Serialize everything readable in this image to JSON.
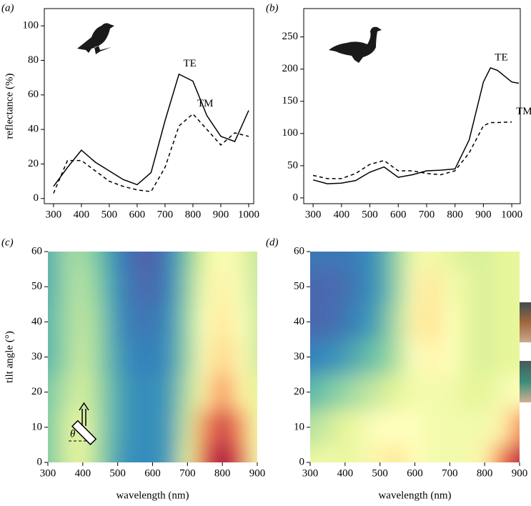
{
  "chart_data": [
    {
      "type": "line",
      "panel_label": "(a)",
      "ylabel": "reflectance (%)",
      "x": [
        300,
        350,
        400,
        450,
        500,
        550,
        600,
        650,
        700,
        750,
        800,
        850,
        900,
        950,
        1000
      ],
      "series": [
        {
          "name": "TE",
          "color": "#000000",
          "line_style": "solid",
          "values": [
            7,
            18,
            28,
            21,
            16,
            11,
            8,
            15,
            45,
            72,
            68,
            48,
            36,
            33,
            51
          ]
        },
        {
          "name": "TM",
          "color": "#000000",
          "line_style": "dashed",
          "values": [
            3,
            22,
            22,
            16,
            10,
            7,
            5,
            4,
            18,
            42,
            49,
            40,
            31,
            38,
            36
          ]
        }
      ],
      "xlim": [
        267,
        1018
      ],
      "ylim": [
        -3,
        110
      ],
      "xticks": [
        300,
        400,
        500,
        600,
        700,
        800,
        900,
        1000
      ],
      "yticks": [
        0,
        20,
        40,
        60,
        80,
        100
      ]
    },
    {
      "type": "line",
      "panel_label": "(b)",
      "x": [
        300,
        350,
        400,
        450,
        500,
        550,
        600,
        650,
        700,
        750,
        800,
        850,
        900,
        925,
        950,
        1000,
        1025
      ],
      "series": [
        {
          "name": "TE",
          "color": "#000000",
          "line_style": "solid",
          "values": [
            28,
            22,
            23,
            27,
            40,
            48,
            32,
            36,
            42,
            43,
            45,
            90,
            180,
            202,
            198,
            180,
            178
          ]
        },
        {
          "name": "TM",
          "color": "#000000",
          "line_style": "dashed",
          "values": [
            35,
            30,
            30,
            38,
            52,
            58,
            42,
            42,
            38,
            36,
            42,
            70,
            112,
            117,
            117,
            118,
            null
          ]
        }
      ],
      "xlim": [
        267,
        1030
      ],
      "ylim": [
        -9,
        294
      ],
      "xticks": [
        300,
        400,
        500,
        600,
        700,
        800,
        900,
        1000
      ],
      "yticks": [
        0,
        50,
        100,
        150,
        200,
        250
      ]
    },
    {
      "type": "heatmap",
      "panel_label": "(c)",
      "ylabel": "tilt angle (°)",
      "xlabel": "wavelength (nm)",
      "inset_label": "θ",
      "x": [
        300,
        350,
        400,
        450,
        500,
        550,
        600,
        650,
        700,
        750,
        800,
        850,
        900
      ],
      "y": [
        0,
        10,
        20,
        30,
        40,
        50,
        60
      ],
      "z": [
        [
          0.25,
          0.4,
          0.45,
          0.3,
          0.15,
          0.12,
          0.12,
          0.15,
          0.45,
          0.85,
          1.0,
          0.85,
          0.5
        ],
        [
          0.25,
          0.4,
          0.48,
          0.3,
          0.17,
          0.12,
          0.12,
          0.15,
          0.4,
          0.75,
          0.92,
          0.75,
          0.5
        ],
        [
          0.25,
          0.35,
          0.42,
          0.3,
          0.17,
          0.12,
          0.12,
          0.15,
          0.35,
          0.62,
          0.75,
          0.62,
          0.45
        ],
        [
          0.2,
          0.3,
          0.4,
          0.28,
          0.15,
          0.1,
          0.1,
          0.13,
          0.3,
          0.58,
          0.68,
          0.58,
          0.4
        ],
        [
          0.2,
          0.3,
          0.38,
          0.28,
          0.13,
          0.08,
          0.08,
          0.12,
          0.3,
          0.55,
          0.65,
          0.55,
          0.4
        ],
        [
          0.18,
          0.3,
          0.36,
          0.25,
          0.12,
          0.06,
          0.05,
          0.1,
          0.28,
          0.5,
          0.6,
          0.52,
          0.38
        ],
        [
          0.18,
          0.3,
          0.33,
          0.22,
          0.1,
          0.05,
          0.03,
          0.1,
          0.25,
          0.45,
          0.55,
          0.48,
          0.38
        ]
      ],
      "zlim": [
        0,
        1
      ],
      "colorscale": [
        "#5e4fa2",
        "#3288bd",
        "#66c2a5",
        "#abdda4",
        "#e6f598",
        "#ffffbf",
        "#fee08b",
        "#f46d43",
        "#d53e4f",
        "#9e0142"
      ],
      "xlim": [
        300,
        900
      ],
      "ylim": [
        0,
        60
      ],
      "xticks": [
        300,
        400,
        500,
        600,
        700,
        800,
        900
      ],
      "yticks": [
        0,
        10,
        20,
        30,
        40,
        50,
        60
      ]
    },
    {
      "type": "heatmap",
      "panel_label": "(d)",
      "xlabel": "wavelength (nm)",
      "x": [
        300,
        350,
        400,
        450,
        500,
        550,
        600,
        650,
        700,
        750,
        800,
        850,
        900
      ],
      "y": [
        0,
        10,
        20,
        30,
        40,
        50,
        60
      ],
      "z": [
        [
          0.45,
          0.5,
          0.45,
          0.5,
          0.6,
          0.65,
          0.55,
          0.5,
          0.5,
          0.5,
          0.6,
          0.78,
          0.95
        ],
        [
          0.35,
          0.4,
          0.45,
          0.5,
          0.55,
          0.55,
          0.55,
          0.5,
          0.5,
          0.5,
          0.5,
          0.6,
          0.75
        ],
        [
          0.2,
          0.25,
          0.3,
          0.35,
          0.4,
          0.45,
          0.5,
          0.5,
          0.5,
          0.45,
          0.45,
          0.5,
          0.55
        ],
        [
          0.1,
          0.12,
          0.15,
          0.2,
          0.25,
          0.35,
          0.55,
          0.6,
          0.55,
          0.45,
          0.42,
          0.45,
          0.45
        ],
        [
          0.05,
          0.05,
          0.08,
          0.12,
          0.18,
          0.35,
          0.6,
          0.66,
          0.55,
          0.45,
          0.42,
          0.45,
          0.45
        ],
        [
          0.05,
          0.05,
          0.06,
          0.1,
          0.15,
          0.3,
          0.58,
          0.65,
          0.52,
          0.45,
          0.42,
          0.45,
          0.45
        ],
        [
          0.08,
          0.08,
          0.08,
          0.1,
          0.15,
          0.3,
          0.5,
          0.5,
          0.45,
          0.42,
          0.42,
          0.45,
          0.45
        ]
      ],
      "zlim": [
        0,
        1
      ],
      "colorscale": [
        "#5e4fa2",
        "#3288bd",
        "#66c2a5",
        "#abdda4",
        "#e6f598",
        "#ffffbf",
        "#fee08b",
        "#f46d43",
        "#d53e4f",
        "#9e0142"
      ],
      "xlim": [
        300,
        900
      ],
      "ylim": [
        0,
        60
      ],
      "xticks": [
        300,
        400,
        500,
        600,
        700,
        800,
        900
      ],
      "yticks": [
        0,
        10,
        20,
        30,
        40,
        50,
        60
      ]
    }
  ]
}
